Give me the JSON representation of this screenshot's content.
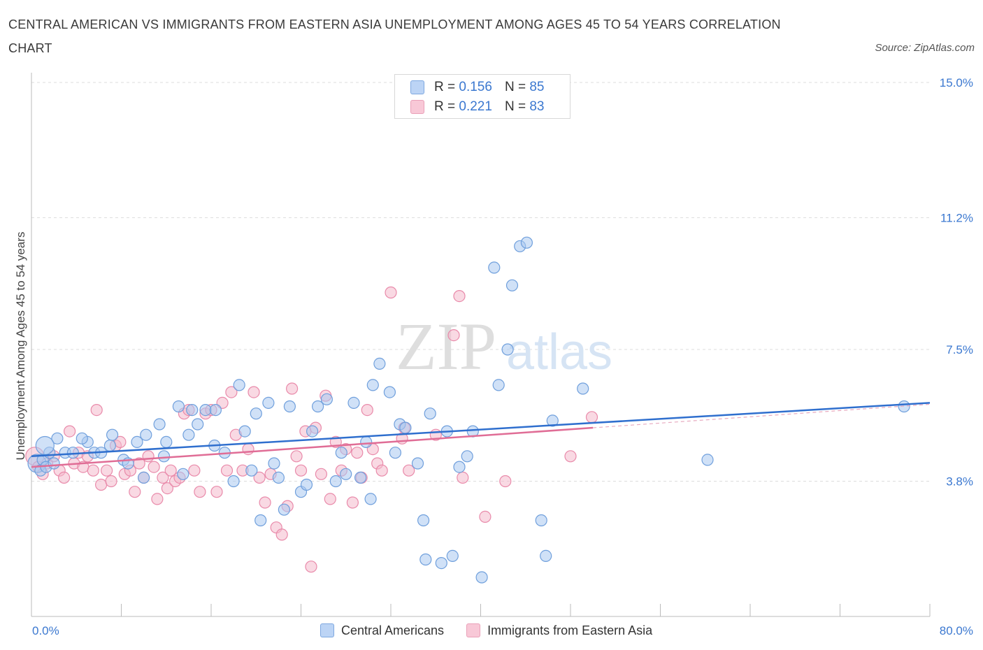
{
  "title": "CENTRAL AMERICAN VS IMMIGRANTS FROM EASTERN ASIA UNEMPLOYMENT AMONG AGES 45 TO 54 YEARS CORRELATION CHART",
  "source": "Source: ZipAtlas.com",
  "watermark": {
    "zip": "ZIP",
    "atlas": "atlas"
  },
  "legend_top": [
    {
      "r_label": "R =",
      "r_value": "0.156",
      "n_label": "N =",
      "n_value": "85"
    },
    {
      "r_label": "R =",
      "r_value": "0.221",
      "n_label": "N =",
      "n_value": "83"
    }
  ],
  "legend_bottom": [
    "Central Americans",
    "Immigrants from Eastern Asia"
  ],
  "colors": {
    "blue_fill": "#aac8f0",
    "blue_stroke": "#6f9fdc",
    "blue_line": "#2f6fce",
    "pink_fill": "#f4b9cc",
    "pink_stroke": "#e98aaa",
    "pink_line": "#e06d96",
    "axis_text": "#3b78d0",
    "grid": "#dddddd"
  },
  "chart_data": {
    "type": "scatter",
    "title": "CENTRAL AMERICAN VS IMMIGRANTS FROM EASTERN ASIA UNEMPLOYMENT AMONG AGES 45 TO 54 YEARS CORRELATION CHART",
    "xlabel": "",
    "ylabel": "Unemployment Among Ages 45 to 54 years",
    "xlim": [
      0,
      80
    ],
    "ylim": [
      0,
      15
    ],
    "x_tick_labels": [
      "0.0%",
      "80.0%"
    ],
    "y_tick_labels": [
      "3.8%",
      "7.5%",
      "11.2%",
      "15.0%"
    ],
    "y_ticks": [
      3.8,
      7.5,
      11.2,
      15.0
    ],
    "grid": true,
    "legend_position": "top-center",
    "series": [
      {
        "name": "Central Americans",
        "r": 0.156,
        "n": 85,
        "trend": {
          "x": [
            0,
            80
          ],
          "y": [
            4.5,
            6.0
          ]
        },
        "points": [
          [
            0.5,
            4.3
          ],
          [
            0.8,
            4.1
          ],
          [
            1.0,
            4.4
          ],
          [
            1.3,
            4.2
          ],
          [
            1.6,
            4.6
          ],
          [
            2.0,
            4.3
          ],
          [
            2.3,
            5.0
          ],
          [
            3.0,
            4.6
          ],
          [
            3.7,
            4.6
          ],
          [
            5.0,
            4.9
          ],
          [
            4.5,
            5.0
          ],
          [
            5.6,
            4.6
          ],
          [
            6.2,
            4.6
          ],
          [
            7.0,
            4.8
          ],
          [
            7.2,
            5.1
          ],
          [
            8.2,
            4.4
          ],
          [
            8.6,
            4.3
          ],
          [
            9.4,
            4.9
          ],
          [
            10.2,
            5.1
          ],
          [
            11.4,
            5.4
          ],
          [
            12.0,
            4.9
          ],
          [
            10.0,
            3.9
          ],
          [
            11.8,
            4.5
          ],
          [
            13.1,
            5.9
          ],
          [
            13.5,
            4.0
          ],
          [
            14.0,
            5.1
          ],
          [
            14.3,
            5.8
          ],
          [
            14.8,
            5.4
          ],
          [
            15.5,
            5.8
          ],
          [
            16.4,
            5.8
          ],
          [
            16.3,
            4.8
          ],
          [
            17.2,
            4.6
          ],
          [
            18.0,
            3.8
          ],
          [
            18.5,
            6.5
          ],
          [
            19.0,
            5.2
          ],
          [
            19.6,
            4.1
          ],
          [
            20.0,
            5.7
          ],
          [
            20.4,
            2.7
          ],
          [
            21.1,
            6.0
          ],
          [
            21.6,
            4.3
          ],
          [
            22.0,
            3.9
          ],
          [
            22.5,
            3.0
          ],
          [
            23.0,
            5.9
          ],
          [
            24.0,
            3.5
          ],
          [
            24.5,
            3.7
          ],
          [
            25.0,
            5.2
          ],
          [
            25.5,
            5.9
          ],
          [
            26.3,
            6.1
          ],
          [
            27.1,
            3.8
          ],
          [
            27.6,
            4.6
          ],
          [
            28.0,
            4.0
          ],
          [
            28.7,
            6.0
          ],
          [
            29.3,
            3.9
          ],
          [
            29.8,
            4.9
          ],
          [
            30.4,
            6.5
          ],
          [
            31.0,
            7.1
          ],
          [
            30.2,
            3.3
          ],
          [
            31.9,
            6.3
          ],
          [
            32.4,
            4.6
          ],
          [
            32.8,
            5.4
          ],
          [
            33.3,
            5.3
          ],
          [
            34.4,
            4.3
          ],
          [
            34.9,
            2.7
          ],
          [
            35.1,
            1.6
          ],
          [
            35.5,
            5.7
          ],
          [
            36.5,
            1.5
          ],
          [
            37.0,
            5.2
          ],
          [
            37.5,
            1.7
          ],
          [
            38.1,
            4.2
          ],
          [
            38.8,
            4.5
          ],
          [
            39.3,
            5.2
          ],
          [
            40.1,
            1.1
          ],
          [
            41.2,
            9.8
          ],
          [
            41.6,
            6.5
          ],
          [
            42.4,
            7.5
          ],
          [
            42.8,
            9.3
          ],
          [
            43.5,
            10.4
          ],
          [
            44.1,
            10.5
          ],
          [
            45.4,
            2.7
          ],
          [
            45.8,
            1.7
          ],
          [
            46.4,
            5.5
          ],
          [
            49.1,
            6.4
          ],
          [
            60.2,
            4.4
          ],
          [
            77.7,
            5.9
          ],
          [
            1.2,
            4.8
          ]
        ]
      },
      {
        "name": "Immigrants from Eastern Asia",
        "r": 0.221,
        "n": 83,
        "trend": {
          "x": [
            0,
            50
          ],
          "y": [
            4.2,
            5.3
          ]
        },
        "points": [
          [
            0.3,
            4.5
          ],
          [
            0.6,
            4.2
          ],
          [
            1.0,
            4.0
          ],
          [
            1.4,
            4.3
          ],
          [
            2.0,
            4.5
          ],
          [
            2.5,
            4.1
          ],
          [
            2.9,
            3.9
          ],
          [
            3.4,
            5.2
          ],
          [
            3.8,
            4.3
          ],
          [
            4.2,
            4.6
          ],
          [
            4.6,
            4.2
          ],
          [
            5.0,
            4.5
          ],
          [
            5.5,
            4.1
          ],
          [
            5.8,
            5.8
          ],
          [
            6.2,
            3.7
          ],
          [
            6.7,
            4.1
          ],
          [
            7.1,
            3.8
          ],
          [
            7.5,
            4.8
          ],
          [
            7.9,
            4.9
          ],
          [
            8.3,
            4.0
          ],
          [
            8.8,
            4.1
          ],
          [
            9.2,
            3.5
          ],
          [
            9.6,
            4.3
          ],
          [
            10.0,
            3.9
          ],
          [
            10.4,
            4.5
          ],
          [
            10.9,
            4.2
          ],
          [
            11.2,
            3.3
          ],
          [
            11.7,
            3.9
          ],
          [
            12.1,
            3.6
          ],
          [
            12.4,
            4.1
          ],
          [
            12.8,
            3.8
          ],
          [
            13.2,
            3.9
          ],
          [
            13.6,
            5.7
          ],
          [
            14.0,
            5.8
          ],
          [
            14.5,
            4.1
          ],
          [
            15.0,
            3.5
          ],
          [
            15.5,
            5.7
          ],
          [
            16.0,
            5.8
          ],
          [
            16.5,
            3.5
          ],
          [
            17.0,
            6.0
          ],
          [
            17.4,
            4.1
          ],
          [
            17.8,
            6.3
          ],
          [
            18.2,
            5.1
          ],
          [
            18.8,
            4.1
          ],
          [
            19.3,
            4.7
          ],
          [
            19.8,
            6.3
          ],
          [
            20.3,
            3.9
          ],
          [
            20.8,
            3.2
          ],
          [
            21.3,
            4.0
          ],
          [
            21.8,
            2.5
          ],
          [
            22.3,
            2.3
          ],
          [
            22.8,
            3.1
          ],
          [
            23.2,
            6.4
          ],
          [
            23.6,
            4.5
          ],
          [
            24.0,
            4.1
          ],
          [
            24.4,
            5.2
          ],
          [
            24.9,
            1.4
          ],
          [
            25.3,
            5.3
          ],
          [
            25.8,
            4.0
          ],
          [
            26.2,
            6.2
          ],
          [
            26.6,
            3.3
          ],
          [
            27.1,
            4.9
          ],
          [
            27.6,
            4.1
          ],
          [
            28.0,
            4.7
          ],
          [
            28.6,
            3.2
          ],
          [
            29.0,
            4.6
          ],
          [
            29.4,
            3.9
          ],
          [
            29.9,
            5.8
          ],
          [
            30.4,
            4.7
          ],
          [
            30.8,
            4.3
          ],
          [
            31.2,
            4.1
          ],
          [
            32.0,
            9.1
          ],
          [
            33.0,
            5.0
          ],
          [
            33.6,
            4.1
          ],
          [
            33.2,
            5.3
          ],
          [
            36.0,
            5.1
          ],
          [
            37.6,
            7.9
          ],
          [
            38.1,
            9.0
          ],
          [
            38.4,
            3.9
          ],
          [
            40.4,
            2.8
          ],
          [
            42.2,
            3.8
          ],
          [
            48.0,
            4.5
          ],
          [
            49.9,
            5.6
          ]
        ]
      }
    ]
  }
}
